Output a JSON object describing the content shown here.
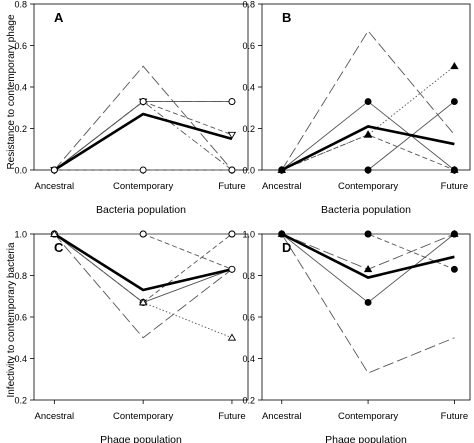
{
  "figure": {
    "row_labels": {
      "top": "Resistance to contemporary phage",
      "bottom": "Infectivity to contemporary bacteria"
    }
  },
  "chart_data": [
    {
      "type": "line",
      "panel": "A",
      "categories": [
        "Ancestral",
        "Contemporary",
        "Future"
      ],
      "xlabel": "Bacteria population",
      "ylabel": "Resistance to contemporary phage",
      "ylim": [
        0.0,
        0.8
      ],
      "yticks": [
        "0.0",
        "0.2",
        "0.4",
        "0.6",
        "0.8"
      ],
      "series": [
        {
          "values": [
            0.0,
            0.5,
            0.0
          ],
          "dash": "long-dash",
          "marker": "none"
        },
        {
          "values": [
            0.0,
            0.33,
            0.33
          ],
          "dash": "long-dash",
          "marker": "open-circle"
        },
        {
          "values": [
            0.0,
            0.33,
            0.33
          ],
          "dash": "solid",
          "marker": "open-circle"
        },
        {
          "values": [
            0.0,
            0.33,
            0.17
          ],
          "dash": "dash",
          "marker": "open-triangle-down"
        },
        {
          "values": [
            0.0,
            0.33,
            0.0
          ],
          "dash": "dash-dot",
          "marker": "open-circle"
        },
        {
          "values": [
            0.0,
            0.0,
            0.0
          ],
          "dash": "dash",
          "marker": "open-circle"
        },
        {
          "values": [
            0.0,
            0.27,
            0.15
          ],
          "dash": "solid",
          "marker": "none",
          "bold": true
        }
      ]
    },
    {
      "type": "line",
      "panel": "B",
      "categories": [
        "Ancestral",
        "Contemporary",
        "Future"
      ],
      "xlabel": "Bacteria population",
      "ylim": [
        0.0,
        0.8
      ],
      "yticks": [
        "0.0",
        "0.2",
        "0.4",
        "0.6",
        "0.8"
      ],
      "series": [
        {
          "values": [
            0.0,
            0.67,
            0.17
          ],
          "dash": "long-dash",
          "marker": "none"
        },
        {
          "values": [
            0.0,
            0.17,
            0.5
          ],
          "dash": "dotted",
          "marker": "filled-triangle"
        },
        {
          "values": [
            0.0,
            0.33,
            0.0
          ],
          "dash": "solid",
          "marker": "filled-circle"
        },
        {
          "values": [
            0.0,
            0.17,
            0.0
          ],
          "dash": "dash",
          "marker": "filled-triangle"
        },
        {
          "values": [
            0.0,
            0.0,
            0.33
          ],
          "dash": "solid",
          "marker": "filled-circle"
        },
        {
          "values": [
            0.0,
            0.0,
            0.0
          ],
          "dash": "solid",
          "marker": "filled-circle"
        },
        {
          "values": [
            0.0,
            0.21,
            0.125
          ],
          "dash": "solid",
          "marker": "none",
          "bold": true
        }
      ]
    },
    {
      "type": "line",
      "panel": "C",
      "categories": [
        "Ancestral",
        "Contemporary",
        "Future"
      ],
      "xlabel": "Phage population",
      "ylabel": "Infectivity to contemporary bacteria",
      "ylim": [
        0.2,
        1.0
      ],
      "yticks": [
        "0.2",
        "0.4",
        "0.6",
        "0.8",
        "1.0"
      ],
      "series": [
        {
          "values": [
            1.0,
            1.0,
            1.0
          ],
          "dash": "solid",
          "marker": "open-circle"
        },
        {
          "values": [
            1.0,
            1.0,
            0.83
          ],
          "dash": "dash",
          "marker": "open-circle"
        },
        {
          "values": [
            1.0,
            0.67,
            0.83
          ],
          "dash": "solid",
          "marker": "open-circle"
        },
        {
          "values": [
            1.0,
            0.67,
            1.0
          ],
          "dash": "dash",
          "marker": "open-circle"
        },
        {
          "values": [
            1.0,
            0.67,
            0.5
          ],
          "dash": "dotted",
          "marker": "open-triangle"
        },
        {
          "values": [
            1.0,
            0.5,
            0.83
          ],
          "dash": "long-dash",
          "marker": "none"
        },
        {
          "values": [
            1.0,
            0.73,
            0.83
          ],
          "dash": "solid",
          "marker": "none",
          "bold": true
        }
      ]
    },
    {
      "type": "line",
      "panel": "D",
      "categories": [
        "Ancestral",
        "Contemporary",
        "Future"
      ],
      "xlabel": "Phage population",
      "ylim": [
        0.2,
        1.0
      ],
      "yticks": [
        "0.2",
        "0.4",
        "0.6",
        "0.8",
        "1.0"
      ],
      "series": [
        {
          "values": [
            1.0,
            1.0,
            1.0
          ],
          "dash": "solid",
          "marker": "filled-circle"
        },
        {
          "values": [
            1.0,
            1.0,
            0.83
          ],
          "dash": "dash",
          "marker": "filled-circle"
        },
        {
          "values": [
            1.0,
            0.83,
            1.0
          ],
          "dash": "long-dash",
          "marker": "filled-triangle"
        },
        {
          "values": [
            1.0,
            0.67,
            1.0
          ],
          "dash": "solid",
          "marker": "filled-circle"
        },
        {
          "values": [
            1.0,
            0.33,
            0.5
          ],
          "dash": "long-dash",
          "marker": "none"
        },
        {
          "values": [
            1.0,
            0.79,
            0.89
          ],
          "dash": "solid",
          "marker": "none",
          "bold": true
        }
      ]
    }
  ]
}
